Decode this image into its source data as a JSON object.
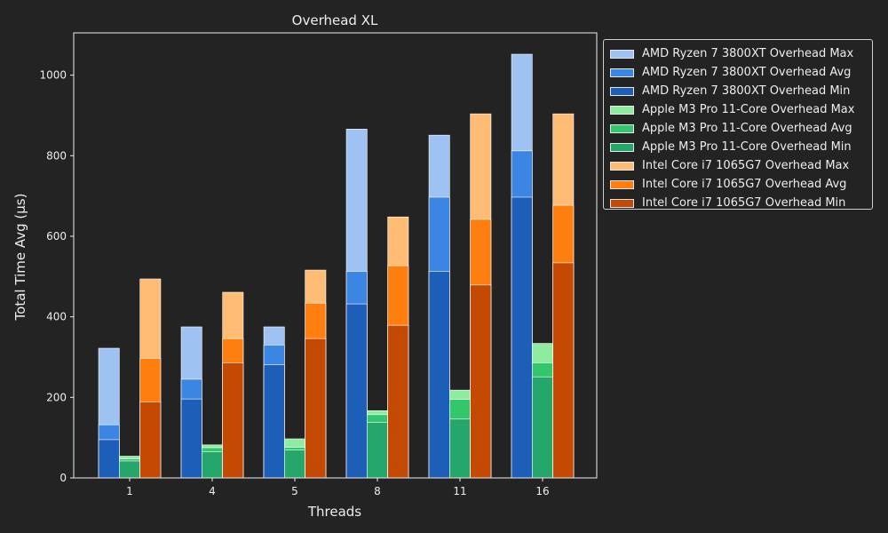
{
  "chart_data": {
    "type": "bar",
    "stacked_overlay": true,
    "title": "Overhead XL",
    "xlabel": "Threads",
    "ylabel": "Total Time Avg (µs)",
    "ylim": [
      0,
      1105
    ],
    "yticks": [
      0,
      200,
      400,
      600,
      800,
      1000
    ],
    "categories": [
      "1",
      "4",
      "5",
      "8",
      "11",
      "16"
    ],
    "legend_position": "outside-top-right",
    "groups": [
      {
        "name": "AMD Ryzen 7 3800XT",
        "max": [
          322,
          375,
          375,
          866,
          851,
          1052
        ],
        "avg": [
          132,
          245,
          330,
          513,
          697,
          812
        ],
        "min": [
          95,
          196,
          281,
          432,
          513,
          697
        ],
        "colors": {
          "max": "#9ec2f2",
          "avg": "#3b86e2",
          "min": "#1d5eb8"
        }
      },
      {
        "name": "Apple M3 Pro 11-Core",
        "max": [
          54,
          82,
          97,
          167,
          218,
          334
        ],
        "avg": [
          47,
          75,
          76,
          157,
          195,
          286
        ],
        "min": [
          42,
          65,
          69,
          138,
          146,
          251
        ],
        "colors": {
          "max": "#8eeca0",
          "avg": "#34c66c",
          "min": "#25a66b"
        }
      },
      {
        "name": "Intel Core i7 1065G7",
        "max": [
          494,
          461,
          516,
          648,
          904,
          904
        ],
        "avg": [
          297,
          346,
          434,
          527,
          642,
          677
        ],
        "min": [
          189,
          286,
          346,
          379,
          479,
          534
        ],
        "colors": {
          "max": "#ffbc75",
          "avg": "#fe7f10",
          "min": "#c44a04"
        }
      }
    ],
    "legend": [
      {
        "label": "AMD Ryzen 7 3800XT Overhead Max",
        "color": "#9ec2f2"
      },
      {
        "label": "AMD Ryzen 7 3800XT Overhead Avg",
        "color": "#3b86e2"
      },
      {
        "label": "AMD Ryzen 7 3800XT Overhead Min",
        "color": "#1d5eb8"
      },
      {
        "label": "Apple M3 Pro 11-Core Overhead Max",
        "color": "#8eeca0"
      },
      {
        "label": "Apple M3 Pro 11-Core Overhead Avg",
        "color": "#34c66c"
      },
      {
        "label": "Apple M3 Pro 11-Core Overhead Min",
        "color": "#25a66b"
      },
      {
        "label": "Intel Core i7 1065G7 Overhead Max",
        "color": "#ffbc75"
      },
      {
        "label": "Intel Core i7 1065G7 Overhead Avg",
        "color": "#fe7f10"
      },
      {
        "label": "Intel Core i7 1065G7 Overhead Min",
        "color": "#c44a04"
      }
    ]
  }
}
